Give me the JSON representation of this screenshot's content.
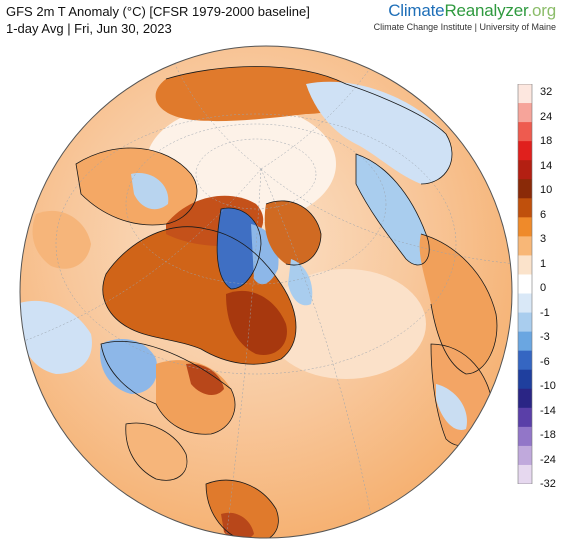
{
  "header": {
    "title": "GFS 2m T Anomaly (°C) [CFSR 1979-2000 baseline]",
    "subtitle": "1-day Avg | Fri, Jun 30, 2023"
  },
  "brand": {
    "name_part1": "Climate",
    "name_part2": "Reanalyzer",
    "name_part3": ".org",
    "tagline": "Climate Change Institute | University of Maine"
  },
  "legend": {
    "labels": [
      "32",
      "24",
      "18",
      "14",
      "10",
      "6",
      "3",
      "1",
      "0",
      "-1",
      "-3",
      "-6",
      "-10",
      "-14",
      "-18",
      "-24",
      "-32"
    ],
    "colors": [
      "#fde7df",
      "#f6a49a",
      "#ee5b4f",
      "#e0201d",
      "#b31f12",
      "#8a2a08",
      "#c0500c",
      "#ef8a2a",
      "#f8b777",
      "#fbe3cb",
      "#ffffff",
      "#d9e8f7",
      "#a9cdee",
      "#6aa6e1",
      "#3566c2",
      "#1f3f9e",
      "#2a2585",
      "#5a3fa8",
      "#9276c8",
      "#c0a9dc",
      "#e6d8ef"
    ]
  },
  "map": {
    "projection": "orthographic",
    "ocean_color": "#f6cca6",
    "warm_color": "#f39a4c",
    "hot_color": "#c4511a",
    "cool_color": "#a9cdee",
    "cold_color": "#3f6fc3"
  }
}
